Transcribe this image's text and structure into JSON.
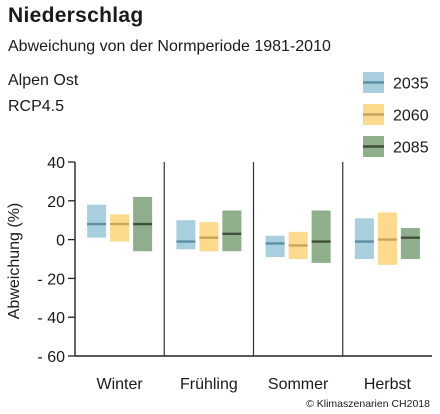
{
  "chart_data": {
    "type": "bar",
    "title": "Niederschlag",
    "subtitle": "Abweichung von der Normperiode 1981-2010",
    "region": "Alpen Ost",
    "scenario": "RCP4.5",
    "ylabel": "Abweichung (%)",
    "ylim": [
      -60,
      40
    ],
    "yticks": [
      40,
      20,
      0,
      -20,
      -40,
      -60
    ],
    "ytick_labels": [
      "40",
      "20",
      "0",
      "- 20",
      "- 40",
      "- 60"
    ],
    "categories": [
      "Winter",
      "Frühling",
      "Sommer",
      "Herbst"
    ],
    "legend_position": "top-right",
    "series": [
      {
        "name": "2035",
        "color": "#a9cfde",
        "median_color": "#5b8fa6",
        "low": [
          1,
          -5,
          -9,
          -10
        ],
        "high": [
          18,
          10,
          2,
          11
        ],
        "median": [
          8,
          -1,
          -2,
          -1
        ]
      },
      {
        "name": "2060",
        "color": "#fcd98b",
        "median_color": "#c9a45c",
        "low": [
          -1,
          -6,
          -10,
          -13
        ],
        "high": [
          13,
          9,
          4,
          14
        ],
        "median": [
          8,
          1,
          -3,
          0
        ]
      },
      {
        "name": "2085",
        "color": "#8faf8c",
        "median_color": "#3f4f3a",
        "low": [
          -6,
          -6,
          -12,
          -10
        ],
        "high": [
          22,
          15,
          15,
          6
        ],
        "median": [
          8,
          3,
          -1,
          1
        ]
      }
    ]
  },
  "copyright": "© Klimaszenarien CH2018"
}
